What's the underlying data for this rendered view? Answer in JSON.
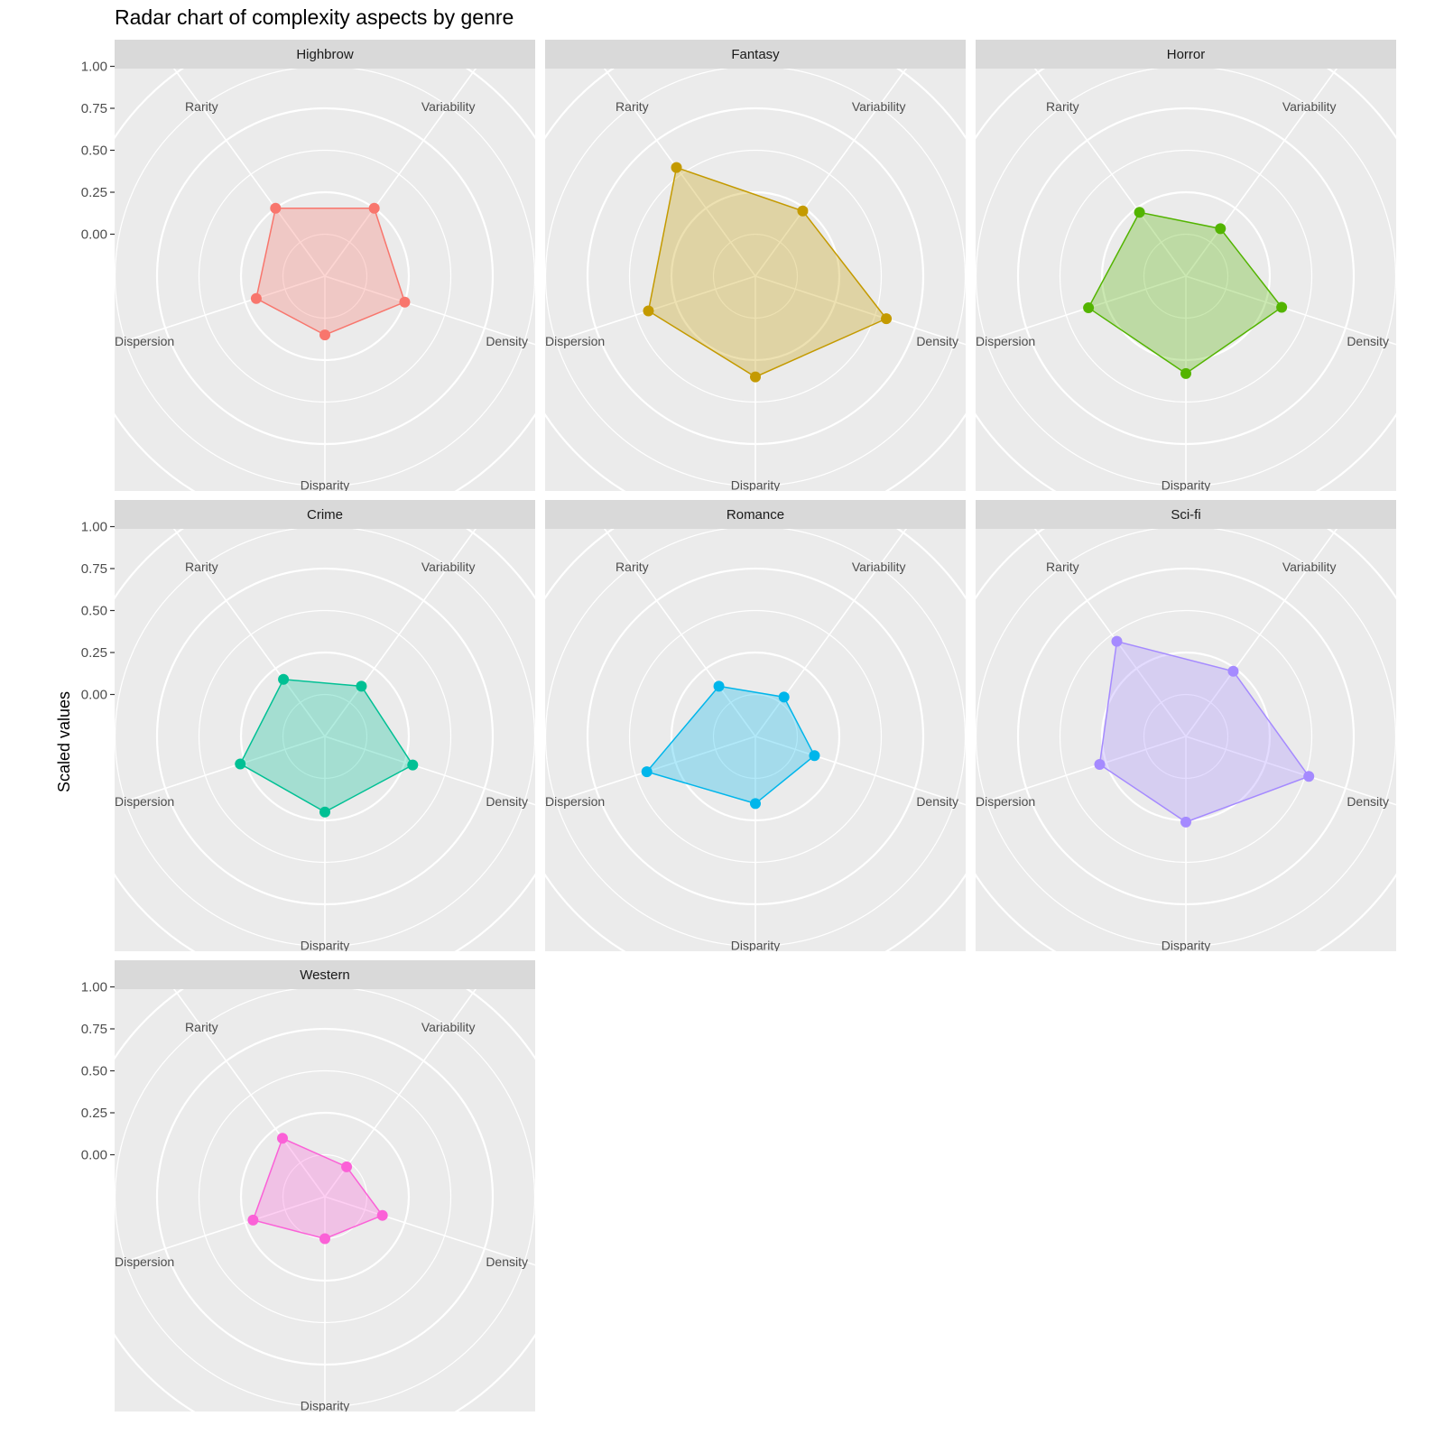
{
  "title": "Radar chart of complexity aspects by genre",
  "chart_data": {
    "type": "radar",
    "title": "Radar chart of complexity aspects by genre",
    "ylabel": "Scaled values",
    "xlabel": "",
    "axes": [
      "Variability",
      "Density",
      "Disparity",
      "Dispersion",
      "Rarity"
    ],
    "y_ticks": [
      "0.00",
      "0.25",
      "0.50",
      "0.75",
      "1.00"
    ],
    "ylim": [
      -0.25,
      1.0
    ],
    "grid_values": [
      0.0,
      0.25,
      0.5,
      0.75,
      1.0
    ],
    "grid": true,
    "legend": "none",
    "facet_layout": "3 columns",
    "series": [
      {
        "name": "Highbrow",
        "color": "#F8766D",
        "values": [
          0.25,
          0.25,
          0.1,
          0.18,
          0.25
        ]
      },
      {
        "name": "Fantasy",
        "color": "#C49A00",
        "values": [
          0.23,
          0.57,
          0.35,
          0.42,
          0.55
        ]
      },
      {
        "name": "Horror",
        "color": "#53B400",
        "values": [
          0.1,
          0.35,
          0.33,
          0.36,
          0.22
        ]
      },
      {
        "name": "Crime",
        "color": "#00C094",
        "values": [
          0.12,
          0.3,
          0.2,
          0.28,
          0.17
        ]
      },
      {
        "name": "Romance",
        "color": "#00B6EB",
        "values": [
          0.04,
          0.12,
          0.15,
          0.43,
          0.12
        ]
      },
      {
        "name": "Sci-fi",
        "color": "#A58AFF",
        "values": [
          0.23,
          0.52,
          0.26,
          0.29,
          0.45
        ]
      },
      {
        "name": "Western",
        "color": "#FB61D7",
        "values": [
          -0.03,
          0.11,
          0.0,
          0.2,
          0.18
        ]
      }
    ]
  }
}
